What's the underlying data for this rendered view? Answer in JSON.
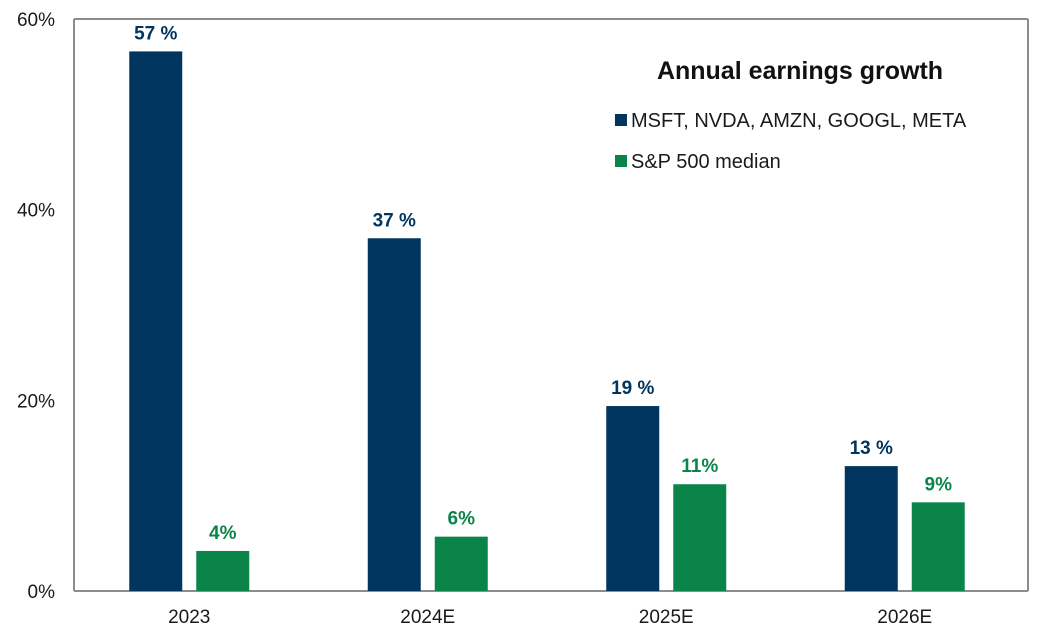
{
  "chart_data": {
    "type": "bar",
    "title": "Annual earnings growth",
    "xlabel": "",
    "ylabel": "",
    "categories": [
      "2023",
      "2024E",
      "2025E",
      "2026E"
    ],
    "ylim": [
      0,
      60
    ],
    "yticks": [
      0,
      20,
      40,
      60
    ],
    "ytick_labels": [
      "0%",
      "20%",
      "40%",
      "60%"
    ],
    "grid": false,
    "legend_position": "top-right",
    "series": [
      {
        "name": "MSFT, NVDA, AMZN, GOOGL, META",
        "color": "#00355f",
        "values": [
          56.6,
          37.0,
          19.4,
          13.1
        ],
        "labels": [
          "57 %",
          "37 %",
          "19 %",
          "13 %"
        ]
      },
      {
        "name": "S&P 500 median",
        "color": "#0a8449",
        "values": [
          4.2,
          5.7,
          11.2,
          9.3
        ],
        "labels": [
          "4%",
          "6%",
          "11%",
          "9%"
        ]
      }
    ]
  },
  "colors": {
    "axis": "#8c8c8c",
    "text": "#1a1a1a"
  }
}
